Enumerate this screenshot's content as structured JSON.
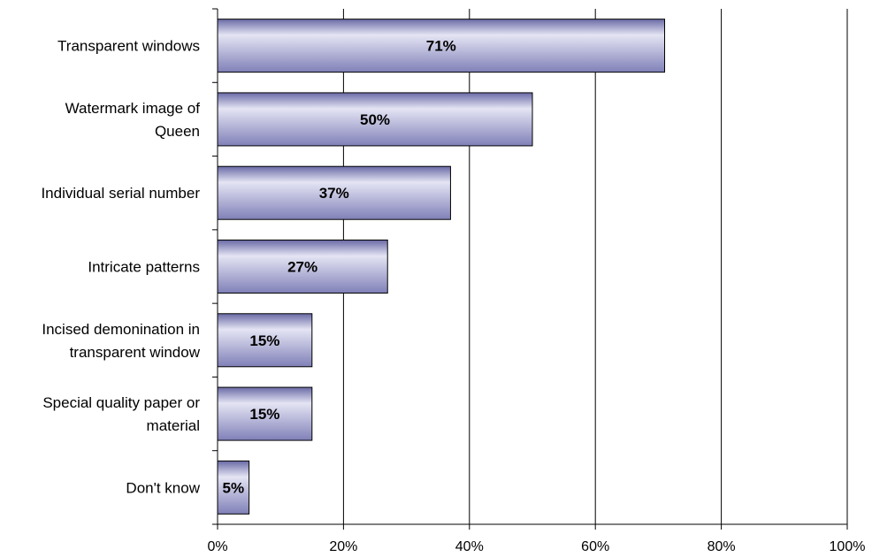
{
  "chart_data": {
    "type": "bar",
    "orientation": "horizontal",
    "categories": [
      [
        "Transparent windows"
      ],
      [
        "Watermark image of",
        "Queen"
      ],
      [
        "Individual serial number"
      ],
      [
        "Intricate patterns"
      ],
      [
        "Incised demonination in",
        "transparent window"
      ],
      [
        "Special quality paper or",
        "material"
      ],
      [
        "Don't know"
      ]
    ],
    "values": [
      71,
      50,
      37,
      27,
      15,
      15,
      5
    ],
    "data_labels": [
      "71%",
      "50%",
      "37%",
      "27%",
      "15%",
      "15%",
      "5%"
    ],
    "xlim": [
      0,
      100
    ],
    "x_ticks": [
      0,
      20,
      40,
      60,
      80,
      100
    ],
    "x_tick_labels": [
      "0%",
      "20%",
      "40%",
      "60%",
      "80%",
      "100%"
    ],
    "grid": "vertical",
    "bar_color": "#8080b8",
    "bar_highlight": "#e4e4f4",
    "title": "",
    "xlabel": "",
    "ylabel": ""
  }
}
